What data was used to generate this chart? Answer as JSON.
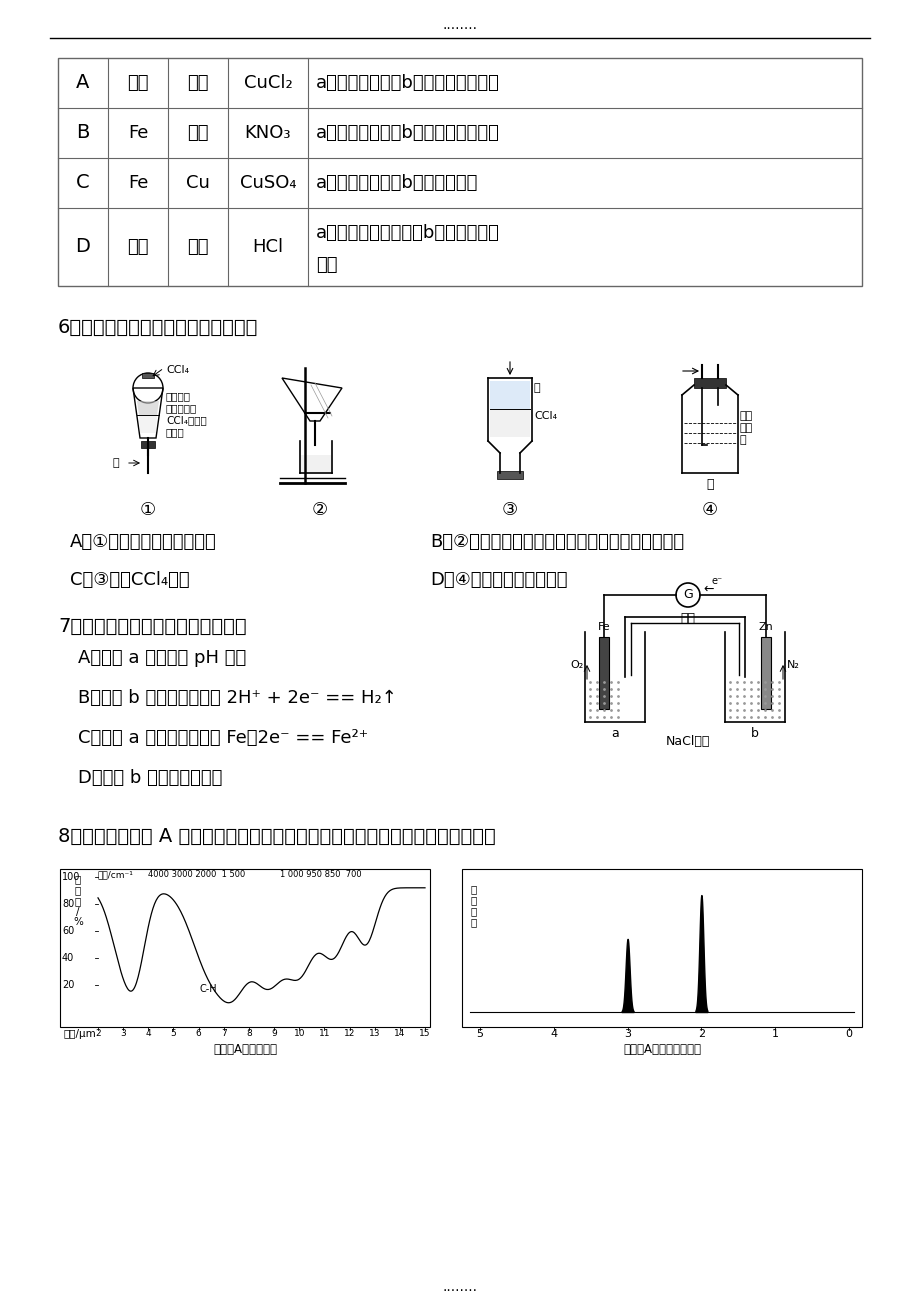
{
  "page_dots": "........",
  "table_rows": [
    [
      "A",
      "石墨",
      "石墨",
      "CuCl₂",
      "a电极质量增加，b电极放出无色气体"
    ],
    [
      "B",
      "Fe",
      "石墨",
      "KNO₃",
      "a电极质量增加，b电极放出无色气体"
    ],
    [
      "C",
      "Fe",
      "Cu",
      "CuSO₄",
      "a电极质量增加，b电极质量减少"
    ],
    [
      "D",
      "石墨",
      "石墨",
      "HCl",
      "a电极放出无色气体，b电极放出无色",
      "气体"
    ]
  ],
  "q6": "6、下列有关实验原理或操作正确的是",
  "q6_labels": [
    "①",
    "②",
    "③",
    "④"
  ],
  "q6_A": "A．①液体分层，下层呼无色",
  "q6_B": "B．②洗浤沉淠时，向漏斗中加适量水，搞拌并滤干",
  "q6_C": "C．③分离CCl₄和水",
  "q6_D": "D．④除去氯气中的氯化氢",
  "q7": "7、根据下图，下列判断中正确的是",
  "q7_A": "A．烧杯 a 中的溶液 pH 降低",
  "q7_B": "B．烧杯 b 中发生的反应为 2H⁺ + 2e⁻ == H₂↑",
  "q7_C": "C．烧杯 a 中发生的反应为 Fe－2e⁻ == Fe²⁺",
  "q7_D": "D．烧杯 b 中发生氧化反应",
  "q8": "8、已知某有机物 A 的红外光谱和核磁共振氢谱如下图所示，下列说法中错误的是",
  "ir_xlabel": "波数/cm⁻¹",
  "ir_wavenumbers": "4000 3000 2000  1 500         1 000 950 850   700",
  "ir_ylabel_top": "透",
  "ir_ylabel": "透过率\n/%",
  "ir_wavelength": "波长/μm",
  "ir_title": "未知物A的红外光谱",
  "nmr_ylabel": "吸收强度",
  "nmr_title": "未知物A的核磁共振氢谱"
}
